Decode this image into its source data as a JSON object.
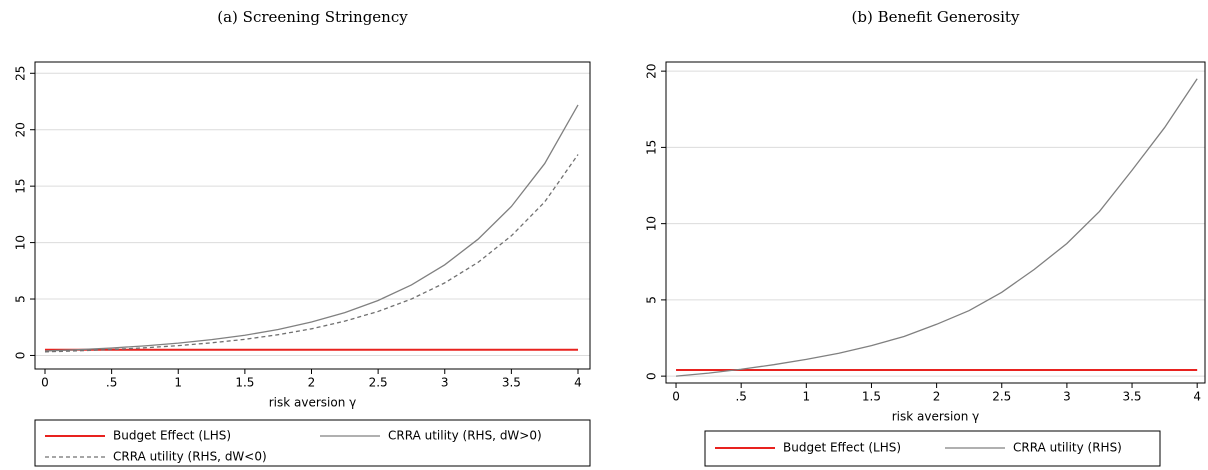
{
  "chart_data": [
    {
      "type": "line",
      "title": "(a) Screening Stringency",
      "xlabel": "risk aversion γ",
      "grid": true,
      "x": [
        0,
        0.25,
        0.5,
        0.75,
        1,
        1.25,
        1.5,
        1.75,
        2,
        2.25,
        2.5,
        2.75,
        3,
        3.25,
        3.5,
        3.75,
        4
      ],
      "xlim": [
        -0.075,
        4.09
      ],
      "ylim": [
        -1.2,
        26
      ],
      "xticks": [
        0,
        {
          "value": 0.5,
          "label": ".5"
        },
        1,
        1.5,
        2,
        2.5,
        3,
        3.5,
        4
      ],
      "yticks": [
        0,
        5,
        10,
        15,
        20,
        25
      ],
      "series": [
        {
          "name": "Budget Effect (LHS)",
          "color": "#e8221f",
          "style": "solid",
          "values": [
            0.5,
            0.5,
            0.5,
            0.5,
            0.5,
            0.5,
            0.5,
            0.5,
            0.5,
            0.5,
            0.5,
            0.5,
            0.5,
            0.5,
            0.5,
            0.5,
            0.5
          ]
        },
        {
          "name": "CRRA utility (RHS, dW>0)",
          "color": "#808080",
          "style": "solid",
          "values": [
            0.4,
            0.51,
            0.66,
            0.85,
            1.09,
            1.4,
            1.79,
            2.3,
            2.96,
            3.8,
            4.87,
            6.25,
            8.03,
            10.3,
            13.2,
            17.0,
            22.2
          ]
        },
        {
          "name": "CRRA utility (RHS, dW<0)",
          "color": "#707070",
          "style": "dashed",
          "values": [
            0.32,
            0.41,
            0.53,
            0.68,
            0.87,
            1.12,
            1.43,
            1.84,
            2.36,
            3.04,
            3.9,
            5.0,
            6.43,
            8.25,
            10.6,
            13.6,
            17.8
          ]
        }
      ]
    },
    {
      "type": "line",
      "title": "(b) Benefit Generosity",
      "xlabel": "risk aversion γ",
      "grid": true,
      "x": [
        0,
        0.25,
        0.5,
        0.75,
        1,
        1.25,
        1.5,
        1.75,
        2,
        2.25,
        2.5,
        2.75,
        3,
        3.25,
        3.5,
        3.75,
        4
      ],
      "xlim": [
        -0.077,
        4.06
      ],
      "ylim": [
        -0.45,
        20.6
      ],
      "xticks": [
        0,
        {
          "value": 0.5,
          "label": ".5"
        },
        1,
        1.5,
        2,
        2.5,
        3,
        3.5,
        4
      ],
      "yticks": [
        0,
        5,
        10,
        15,
        20
      ],
      "series": [
        {
          "name": "Budget Effect (LHS)",
          "color": "#e8221f",
          "style": "solid",
          "values": [
            0.4,
            0.4,
            0.4,
            0.4,
            0.4,
            0.4,
            0.4,
            0.4,
            0.4,
            0.4,
            0.4,
            0.4,
            0.4,
            0.4,
            0.4,
            0.4,
            0.4
          ]
        },
        {
          "name": "CRRA utility (RHS)",
          "color": "#808080",
          "style": "solid",
          "values": [
            0,
            0.2,
            0.45,
            0.75,
            1.1,
            1.5,
            2.0,
            2.6,
            3.4,
            4.3,
            5.5,
            7.0,
            8.7,
            10.8,
            13.5,
            16.3,
            19.5
          ]
        }
      ]
    }
  ]
}
